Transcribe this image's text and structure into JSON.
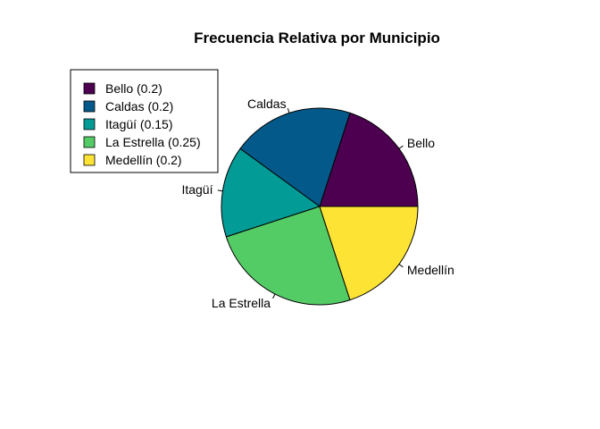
{
  "chart_data": {
    "type": "pie",
    "title": "Frecuencia Relativa por Municipio",
    "categories": [
      "Bello",
      "Caldas",
      "Itagüí",
      "La Estrella",
      "Medellín"
    ],
    "values": [
      0.2,
      0.2,
      0.15,
      0.25,
      0.2
    ],
    "colors": [
      "#440154",
      "#3B528B",
      "#21908C",
      "#5DC863",
      "#FDE725"
    ],
    "slice_colors": [
      "#4d0050",
      "#035a8a",
      "#039b96",
      "#54cc66",
      "#fde333"
    ],
    "start_angle_deg": 0,
    "direction": "counterclockwise",
    "legend": {
      "position": "top-left",
      "entries": [
        "Bello (0.2)",
        "Caldas (0.2)",
        "Itagüí (0.15)",
        "La Estrella (0.25)",
        "Medellín (0.2)"
      ]
    }
  }
}
